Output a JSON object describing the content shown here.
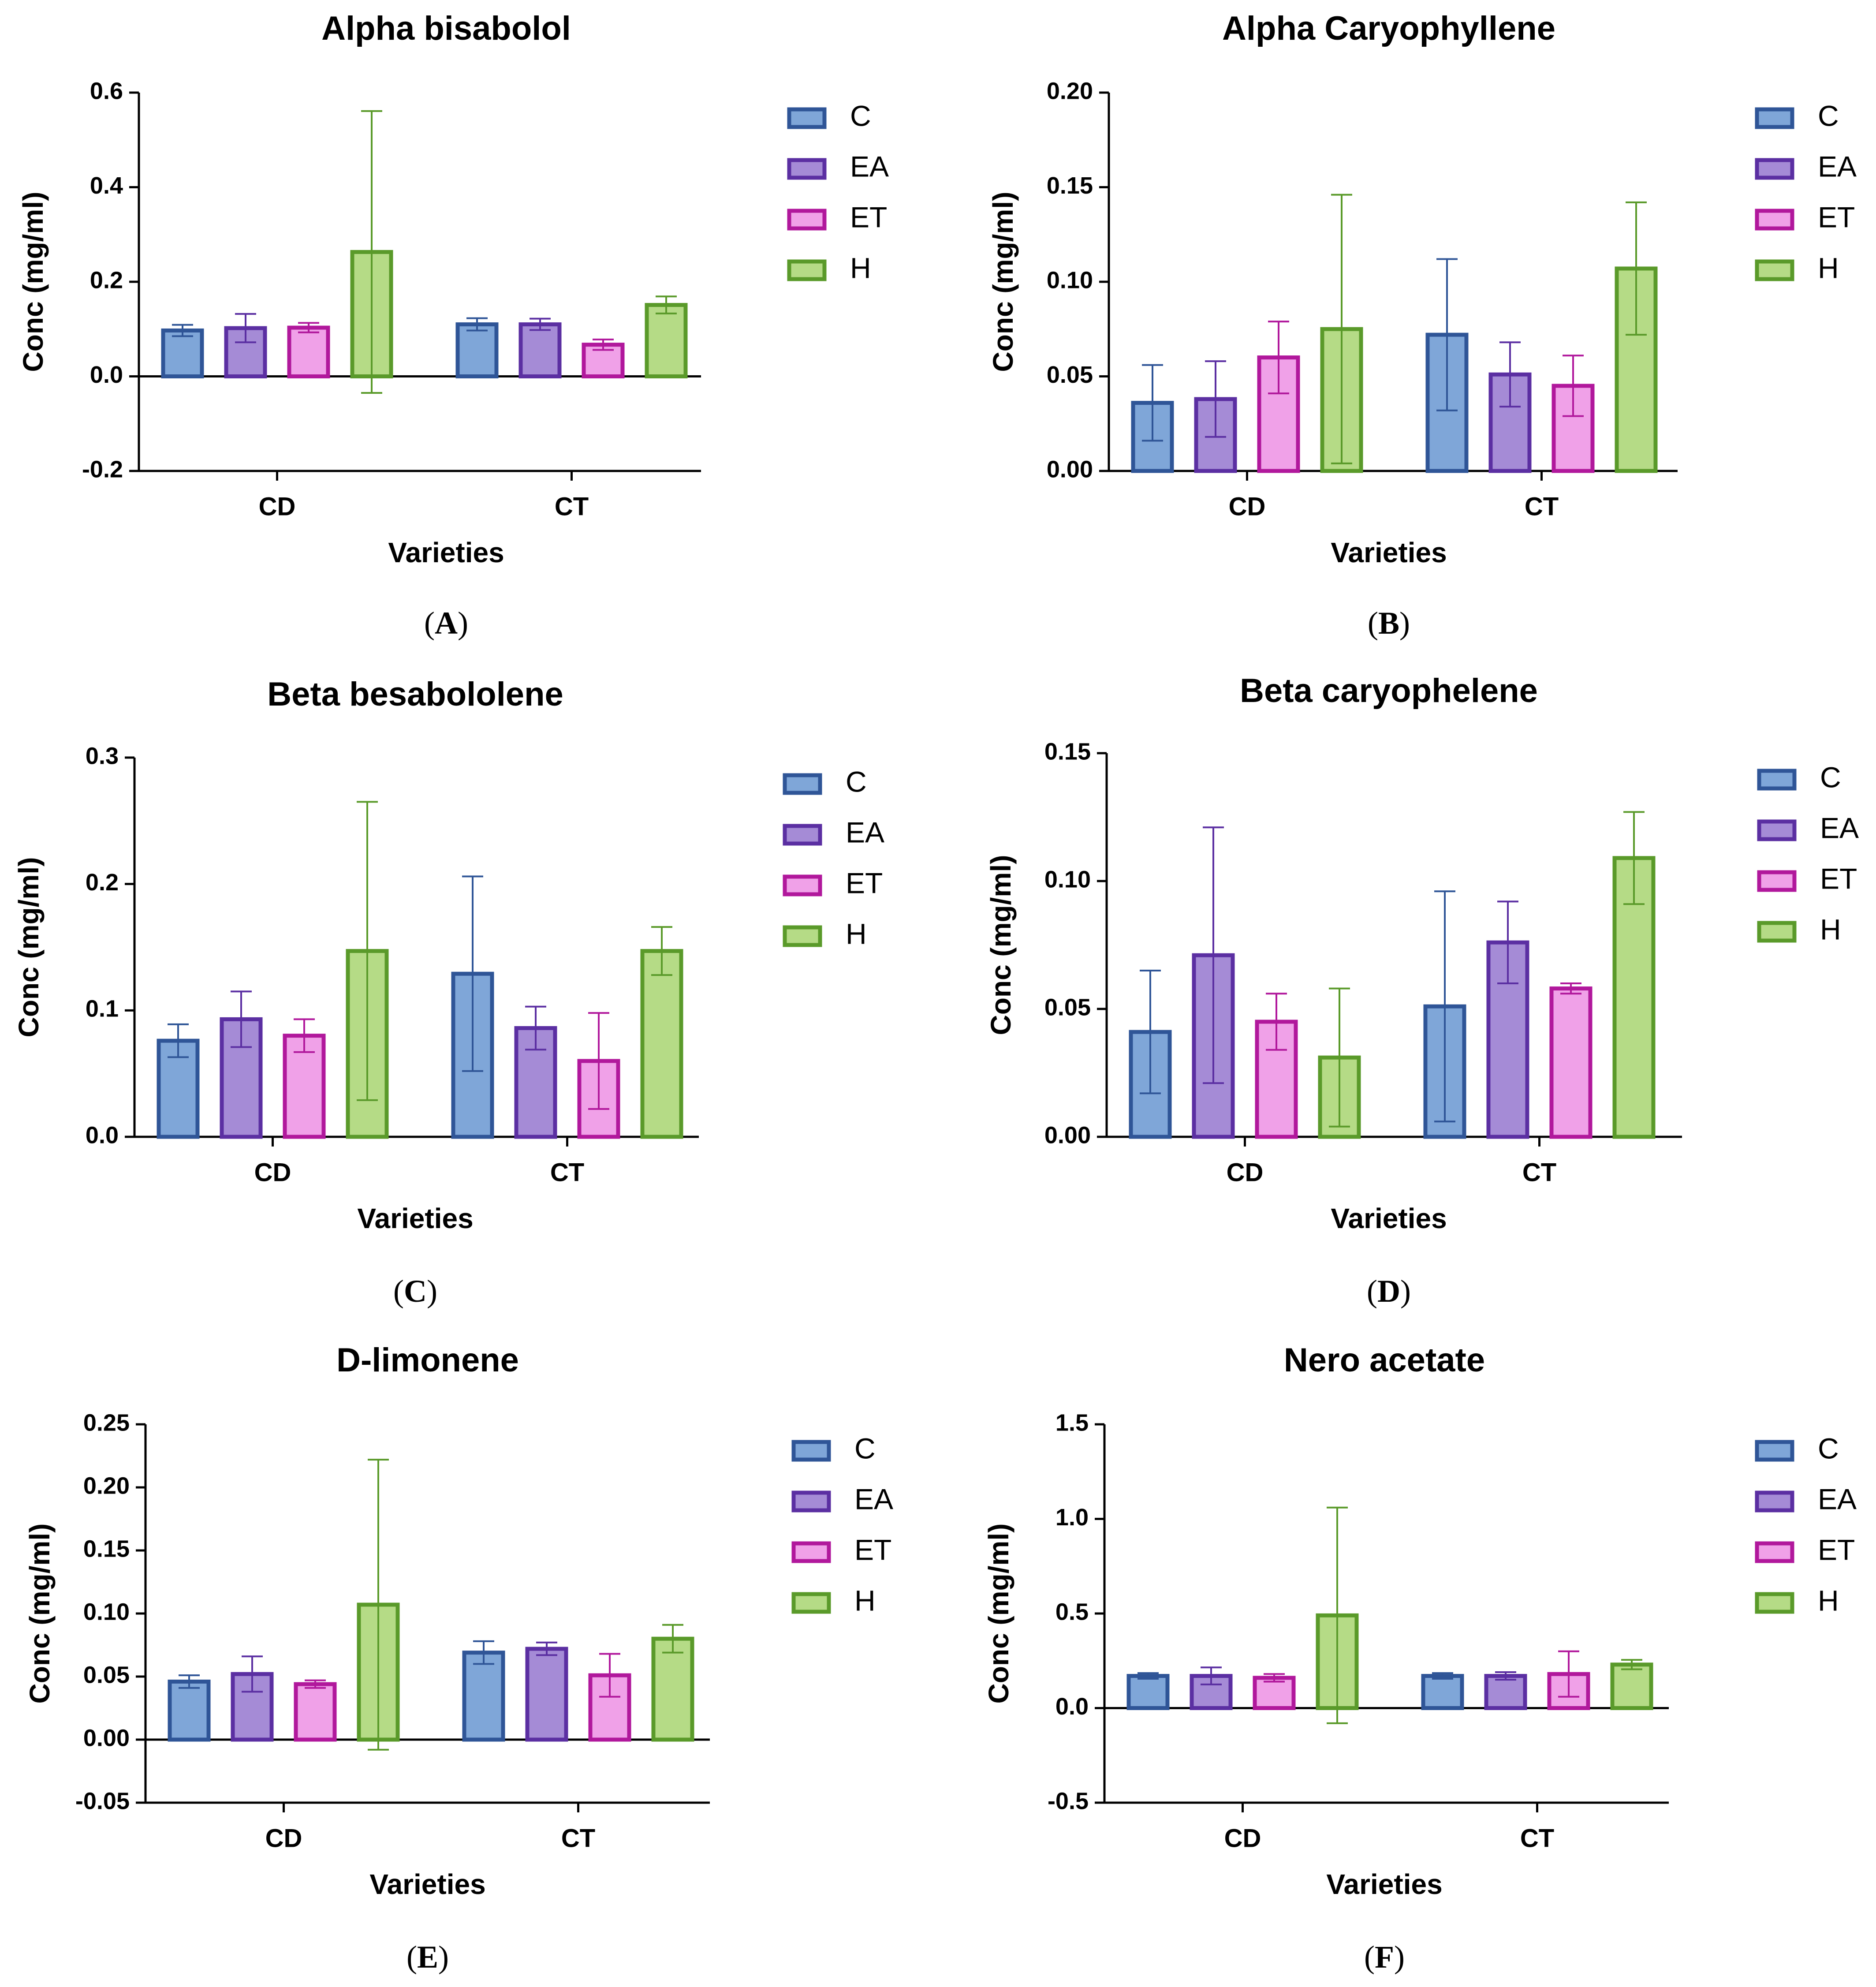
{
  "colors": {
    "C": {
      "fill": "#7fa6d8",
      "stroke": "#2f5597"
    },
    "EA": {
      "fill": "#a58bd6",
      "stroke": "#5b2fa2"
    },
    "ET": {
      "fill": "#f0a1e8",
      "stroke": "#b1189c"
    },
    "H": {
      "fill": "#b5db86",
      "stroke": "#5a9a2a"
    }
  },
  "chart_data": [
    {
      "type": "bar",
      "panel_label": "A",
      "title": "Alpha bisabolol",
      "xlabel": "Varieties",
      "ylabel": "Conc (mg/ml)",
      "categories": [
        "CD",
        "CT"
      ],
      "ylim": [
        -0.2,
        0.6
      ],
      "yticks": [
        "-0.2",
        "0.0",
        "0.2",
        "0.4",
        "0.6"
      ],
      "legend": [
        "C",
        "EA",
        "ET",
        "H"
      ],
      "series": [
        {
          "name": "C",
          "values": [
            0.097,
            0.11
          ],
          "errors": [
            0.012,
            0.013
          ]
        },
        {
          "name": "EA",
          "values": [
            0.102,
            0.11
          ],
          "errors": [
            0.03,
            0.012
          ]
        },
        {
          "name": "ET",
          "values": [
            0.103,
            0.067
          ],
          "errors": [
            0.01,
            0.011
          ]
        },
        {
          "name": "H",
          "values": [
            0.263,
            0.151
          ],
          "errors": [
            0.298,
            0.018
          ]
        }
      ]
    },
    {
      "type": "bar",
      "panel_label": "B",
      "title": "Alpha Caryophyllene",
      "xlabel": "Varieties",
      "ylabel": "Conc (mg/ml)",
      "categories": [
        "CD",
        "CT"
      ],
      "ylim": [
        0,
        0.2
      ],
      "yticks": [
        "0.00",
        "0.05",
        "0.10",
        "0.15",
        "0.20"
      ],
      "legend": [
        "C",
        "EA",
        "ET",
        "H"
      ],
      "series": [
        {
          "name": "C",
          "values": [
            0.036,
            0.072
          ],
          "errors": [
            0.02,
            0.04
          ]
        },
        {
          "name": "EA",
          "values": [
            0.038,
            0.051
          ],
          "errors": [
            0.02,
            0.017
          ]
        },
        {
          "name": "ET",
          "values": [
            0.06,
            0.045
          ],
          "errors": [
            0.019,
            0.016
          ]
        },
        {
          "name": "H",
          "values": [
            0.075,
            0.107
          ],
          "errors": [
            0.071,
            0.035
          ]
        }
      ]
    },
    {
      "type": "bar",
      "panel_label": "C",
      "title": "Beta besabololene",
      "xlabel": "Varieties",
      "ylabel": "Conc (mg/ml)",
      "categories": [
        "CD",
        "CT"
      ],
      "ylim": [
        0,
        0.3
      ],
      "yticks": [
        "0.0",
        "0.1",
        "0.2",
        "0.3"
      ],
      "legend": [
        "C",
        "EA",
        "ET",
        "H"
      ],
      "series": [
        {
          "name": "C",
          "values": [
            0.076,
            0.129
          ],
          "errors": [
            0.013,
            0.077
          ]
        },
        {
          "name": "EA",
          "values": [
            0.093,
            0.086
          ],
          "errors": [
            0.022,
            0.017
          ]
        },
        {
          "name": "ET",
          "values": [
            0.08,
            0.06
          ],
          "errors": [
            0.013,
            0.038
          ]
        },
        {
          "name": "H",
          "values": [
            0.147,
            0.147
          ],
          "errors": [
            0.118,
            0.019
          ]
        }
      ]
    },
    {
      "type": "bar",
      "panel_label": "D",
      "title": "Beta caryophelene",
      "xlabel": "Varieties",
      "ylabel": "Conc (mg/ml)",
      "categories": [
        "CD",
        "CT"
      ],
      "ylim": [
        0,
        0.15
      ],
      "yticks": [
        "0.00",
        "0.05",
        "0.10",
        "0.15"
      ],
      "legend": [
        "C",
        "EA",
        "ET",
        "H"
      ],
      "series": [
        {
          "name": "C",
          "values": [
            0.041,
            0.051
          ],
          "errors": [
            0.024,
            0.045
          ]
        },
        {
          "name": "EA",
          "values": [
            0.071,
            0.076
          ],
          "errors": [
            0.05,
            0.016
          ]
        },
        {
          "name": "ET",
          "values": [
            0.045,
            0.058
          ],
          "errors": [
            0.011,
            0.002
          ]
        },
        {
          "name": "H",
          "values": [
            0.031,
            0.109
          ],
          "errors": [
            0.027,
            0.018
          ]
        }
      ]
    },
    {
      "type": "bar",
      "panel_label": "E",
      "title": "D-limonene",
      "xlabel": "Varieties",
      "ylabel": "Conc (mg/ml)",
      "categories": [
        "CD",
        "CT"
      ],
      "ylim": [
        -0.05,
        0.25
      ],
      "yticks": [
        "-0.05",
        "0.00",
        "0.05",
        "0.10",
        "0.15",
        "0.20",
        "0.25"
      ],
      "legend": [
        "C",
        "EA",
        "ET",
        "H"
      ],
      "series": [
        {
          "name": "C",
          "values": [
            0.046,
            0.069
          ],
          "errors": [
            0.005,
            0.009
          ]
        },
        {
          "name": "EA",
          "values": [
            0.052,
            0.072
          ],
          "errors": [
            0.014,
            0.005
          ]
        },
        {
          "name": "ET",
          "values": [
            0.044,
            0.051
          ],
          "errors": [
            0.003,
            0.017
          ]
        },
        {
          "name": "H",
          "values": [
            0.107,
            0.08
          ],
          "errors": [
            0.115,
            0.011
          ]
        }
      ]
    },
    {
      "type": "bar",
      "panel_label": "F",
      "title": "Nero acetate",
      "xlabel": "Varieties",
      "ylabel": "Conc (mg/ml)",
      "categories": [
        "CD",
        "CT"
      ],
      "ylim": [
        -0.5,
        1.5
      ],
      "yticks": [
        "-0.5",
        "0.0",
        "0.5",
        "1.0",
        "1.5"
      ],
      "legend": [
        "C",
        "EA",
        "ET",
        "H"
      ],
      "series": [
        {
          "name": "C",
          "values": [
            0.17,
            0.17
          ],
          "errors": [
            0.015,
            0.015
          ]
        },
        {
          "name": "EA",
          "values": [
            0.17,
            0.17
          ],
          "errors": [
            0.045,
            0.02
          ]
        },
        {
          "name": "ET",
          "values": [
            0.16,
            0.18
          ],
          "errors": [
            0.02,
            0.12
          ]
        },
        {
          "name": "H",
          "values": [
            0.49,
            0.23
          ],
          "errors": [
            0.57,
            0.025
          ]
        }
      ]
    }
  ]
}
